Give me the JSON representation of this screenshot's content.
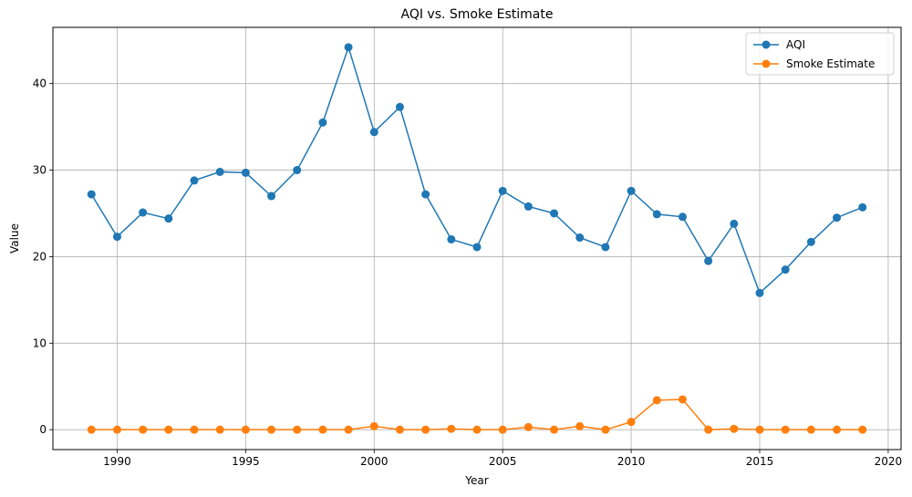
{
  "chart_data": {
    "type": "line",
    "title": "AQI vs. Smoke Estimate",
    "xlabel": "Year",
    "ylabel": "Value",
    "xlim": [
      1987.5,
      2020.5
    ],
    "ylim": [
      -2.3,
      46.5
    ],
    "xticks": [
      1990,
      1995,
      2000,
      2005,
      2010,
      2015,
      2020
    ],
    "yticks": [
      0,
      10,
      20,
      30,
      40
    ],
    "grid": true,
    "legend": "top-right",
    "x": [
      1989,
      1990,
      1991,
      1992,
      1993,
      1994,
      1995,
      1996,
      1997,
      1998,
      1999,
      2000,
      2001,
      2002,
      2003,
      2004,
      2005,
      2006,
      2007,
      2008,
      2009,
      2010,
      2011,
      2012,
      2013,
      2014,
      2015,
      2016,
      2017,
      2018,
      2019
    ],
    "series": [
      {
        "name": "AQI",
        "color": "#1f77b4",
        "values": [
          27.2,
          22.3,
          25.1,
          24.4,
          28.8,
          29.8,
          29.7,
          27.0,
          30.0,
          35.5,
          44.2,
          34.4,
          37.3,
          27.2,
          22.0,
          21.1,
          27.6,
          25.8,
          25.0,
          22.2,
          21.1,
          27.6,
          24.9,
          24.6,
          19.5,
          23.8,
          15.8,
          18.5,
          21.7,
          24.5,
          25.7
        ]
      },
      {
        "name": "Smoke Estimate",
        "color": "#ff7f0e",
        "values": [
          0.0,
          0.0,
          0.0,
          0.0,
          0.0,
          0.0,
          0.0,
          0.0,
          0.0,
          0.0,
          0.0,
          0.4,
          0.0,
          0.0,
          0.1,
          0.0,
          0.0,
          0.3,
          0.0,
          0.4,
          0.0,
          0.9,
          3.4,
          3.5,
          0.0,
          0.1,
          0.0,
          0.0,
          0.0,
          0.0,
          0.0
        ]
      }
    ]
  }
}
